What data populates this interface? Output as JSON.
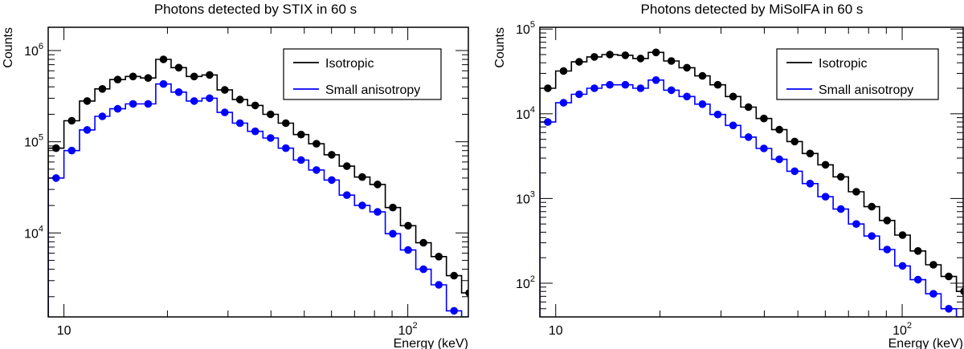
{
  "chart_data": [
    {
      "type": "step-histogram",
      "title": "Photons detected by STIX in 60 s",
      "xlabel": "Energy (keV)",
      "ylabel": "Counts",
      "xscale": "log",
      "yscale": "log",
      "xlim": [
        9,
        150
      ],
      "ylim": [
        1200,
        1800000
      ],
      "xticks": [
        {
          "v": 10,
          "base": "10",
          "exp": ""
        },
        {
          "v": 100,
          "base": "10",
          "exp": "2"
        }
      ],
      "yticks": [
        {
          "v": 10000,
          "base": "10",
          "exp": "4"
        },
        {
          "v": 100000,
          "base": "10",
          "exp": "5"
        },
        {
          "v": 1000000,
          "base": "10",
          "exp": "6"
        }
      ],
      "legend_position": "top-right",
      "bins": [
        9.0,
        10.0,
        11.1,
        12.3,
        13.6,
        15.1,
        16.7,
        18.5,
        20.5,
        22.7,
        25.2,
        27.9,
        30.9,
        34.2,
        37.9,
        42.0,
        46.5,
        51.5,
        57.1,
        63.2,
        70.0,
        77.6,
        86.0,
        95.2,
        105.5,
        116.9,
        129.5,
        143.4
      ],
      "series": [
        {
          "name": "Isotropic",
          "color": "#000000",
          "values": [
            85000,
            170000,
            280000,
            380000,
            480000,
            520000,
            500000,
            800000,
            650000,
            520000,
            540000,
            370000,
            290000,
            250000,
            200000,
            160000,
            120000,
            95000,
            72000,
            54000,
            41000,
            34000,
            19000,
            12000,
            7800,
            5500,
            3400,
            2200
          ]
        },
        {
          "name": "Small anisotropy",
          "color": "#0000ff",
          "values": [
            40000,
            80000,
            135000,
            190000,
            230000,
            260000,
            260000,
            430000,
            350000,
            280000,
            300000,
            210000,
            160000,
            130000,
            110000,
            85000,
            63000,
            49000,
            38000,
            26000,
            20000,
            17000,
            9800,
            6500,
            4000,
            2700,
            1400,
            0
          ]
        }
      ]
    },
    {
      "type": "step-histogram",
      "title": "Photons detected by MiSolFA in 60 s",
      "xlabel": "Energy (keV)",
      "ylabel": "Counts",
      "xscale": "log",
      "yscale": "log",
      "xlim": [
        9,
        150
      ],
      "ylim": [
        40,
        105000
      ],
      "xticks": [
        {
          "v": 10,
          "base": "10",
          "exp": ""
        },
        {
          "v": 100,
          "base": "10",
          "exp": "2"
        }
      ],
      "yticks": [
        {
          "v": 100,
          "base": "10",
          "exp": "2"
        },
        {
          "v": 1000,
          "base": "10",
          "exp": "3"
        },
        {
          "v": 10000,
          "base": "10",
          "exp": "4"
        },
        {
          "v": 100000,
          "base": "10",
          "exp": "5"
        }
      ],
      "legend_position": "top-right",
      "bins": [
        9.0,
        10.0,
        11.1,
        12.3,
        13.6,
        15.1,
        16.7,
        18.5,
        20.5,
        22.7,
        25.2,
        27.9,
        30.9,
        34.2,
        37.9,
        42.0,
        46.5,
        51.5,
        57.1,
        63.2,
        70.0,
        77.6,
        86.0,
        95.2,
        105.5,
        116.9,
        129.5,
        143.4
      ],
      "series": [
        {
          "name": "Isotropic",
          "color": "#000000",
          "values": [
            20000,
            32000,
            41000,
            47000,
            50000,
            49000,
            45000,
            53000,
            42000,
            35000,
            28000,
            22000,
            16000,
            12000,
            8800,
            6500,
            4700,
            3400,
            2500,
            1800,
            1200,
            800,
            550,
            370,
            240,
            165,
            120,
            80
          ]
        },
        {
          "name": "Small anisotropy",
          "color": "#0000ff",
          "values": [
            8000,
            13500,
            17000,
            20000,
            22000,
            22000,
            20000,
            25000,
            19000,
            16000,
            13000,
            9800,
            7300,
            5300,
            3900,
            2900,
            2100,
            1500,
            1050,
            750,
            500,
            360,
            250,
            160,
            110,
            75,
            50,
            0
          ]
        }
      ]
    }
  ]
}
